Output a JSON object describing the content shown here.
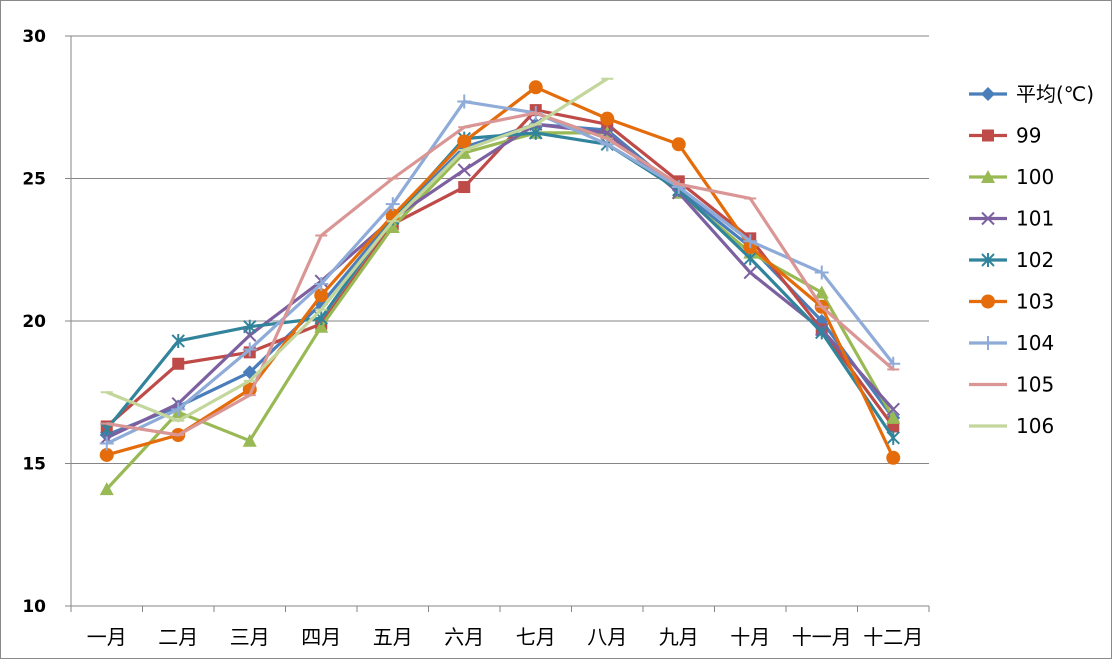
{
  "chart_data": {
    "type": "line",
    "title": "",
    "xlabel": "",
    "ylabel": "",
    "ylim": [
      10,
      30
    ],
    "yticks": [
      10,
      15,
      20,
      25,
      30
    ],
    "grid": true,
    "legend_position": "right",
    "categories": [
      "一月",
      "二月",
      "三月",
      "四月",
      "五月",
      "六月",
      "七月",
      "八月",
      "九月",
      "十月",
      "十一月",
      "十二月"
    ],
    "series": [
      {
        "name": "平均(℃)",
        "color": "#4a7ebb",
        "marker": "diamond",
        "values": [
          16.0,
          17.0,
          18.2,
          20.6,
          23.6,
          26.1,
          26.9,
          26.7,
          24.6,
          22.6,
          20.0,
          16.6
        ]
      },
      {
        "name": "99",
        "color": "#be4b48",
        "marker": "square",
        "values": [
          16.3,
          18.5,
          18.9,
          19.9,
          23.4,
          24.7,
          27.4,
          26.9,
          24.9,
          22.9,
          19.7,
          16.3
        ]
      },
      {
        "name": "100",
        "color": "#98b954",
        "marker": "triangle",
        "values": [
          14.1,
          16.8,
          15.8,
          19.8,
          23.3,
          25.9,
          26.6,
          26.6,
          24.5,
          22.4,
          21.0,
          16.6
        ]
      },
      {
        "name": "101",
        "color": "#7d60a0",
        "marker": "x",
        "values": [
          15.9,
          17.1,
          19.5,
          21.4,
          23.6,
          25.3,
          26.9,
          26.6,
          24.5,
          21.7,
          19.7,
          16.9
        ]
      },
      {
        "name": "102",
        "color": "#31849b",
        "marker": "star",
        "values": [
          16.2,
          19.3,
          19.8,
          20.1,
          23.6,
          26.4,
          26.6,
          26.2,
          24.6,
          22.2,
          19.6,
          15.9
        ]
      },
      {
        "name": "103",
        "color": "#e46c0a",
        "marker": "circle",
        "values": [
          15.3,
          16.0,
          17.6,
          20.9,
          23.7,
          26.3,
          28.2,
          27.1,
          26.2,
          22.6,
          20.5,
          15.2
        ]
      },
      {
        "name": "104",
        "color": "#8fabd8",
        "marker": "plus",
        "values": [
          15.7,
          16.9,
          19.0,
          21.3,
          24.1,
          27.7,
          27.3,
          26.2,
          24.7,
          22.8,
          21.7,
          18.5
        ]
      },
      {
        "name": "105",
        "color": "#d99694",
        "marker": "dash",
        "values": [
          16.4,
          16.0,
          17.4,
          23.0,
          25.0,
          26.8,
          27.3,
          26.4,
          24.8,
          24.3,
          20.5,
          18.3
        ]
      },
      {
        "name": "106",
        "color": "#c3d69b",
        "marker": "dash",
        "values": [
          17.5,
          16.5,
          17.9,
          20.4,
          23.5,
          26.0,
          26.9,
          28.5,
          null,
          null,
          null,
          null
        ]
      }
    ]
  }
}
